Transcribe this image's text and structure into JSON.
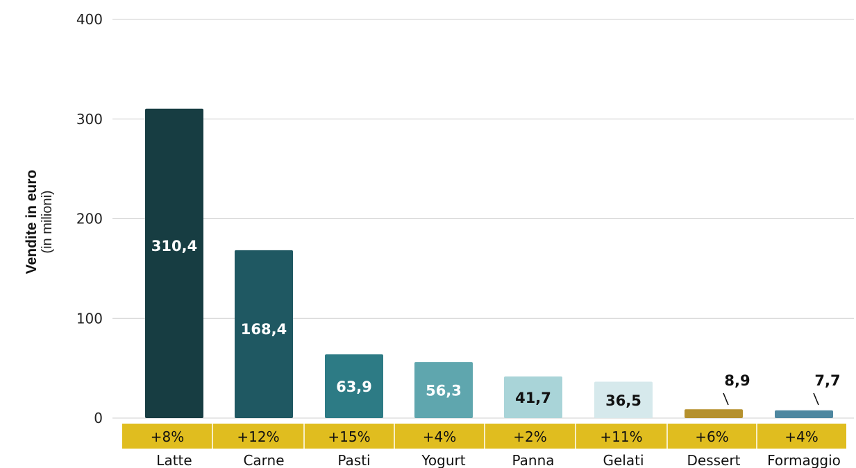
{
  "chart_data": {
    "type": "bar",
    "ylabel": "Vendite in euro",
    "ylabel_sub": "(in milioni)",
    "ylim": [
      0,
      400
    ],
    "yticks": [
      0,
      100,
      200,
      300,
      400
    ],
    "grid": "horizontal",
    "categories": [
      "Latte",
      "Carne",
      "Pasti",
      "Yogurt",
      "Panna",
      "Gelati",
      "Dessert",
      "Formaggio"
    ],
    "values": [
      310.4,
      168.4,
      63.9,
      56.3,
      41.7,
      36.5,
      8.9,
      7.7
    ],
    "value_labels": [
      "310,4",
      "168,4",
      "63,9",
      "56,3",
      "41,7",
      "36,5",
      "8,9",
      "7,7"
    ],
    "growth_labels": [
      "+8%",
      "+12%",
      "+15%",
      "+4%",
      "+2%",
      "+11%",
      "+6%",
      "+4%"
    ],
    "bar_colors": [
      "#173d42",
      "#1f5862",
      "#2d7b85",
      "#5fa6ae",
      "#a9d4d8",
      "#d6e9ec",
      "#b5912e",
      "#4e87a0"
    ],
    "label_colors": [
      "#ffffff",
      "#ffffff",
      "#ffffff",
      "#ffffff",
      "#111111",
      "#111111",
      "#111111",
      "#111111"
    ],
    "band_color": "#e0bd1f"
  }
}
